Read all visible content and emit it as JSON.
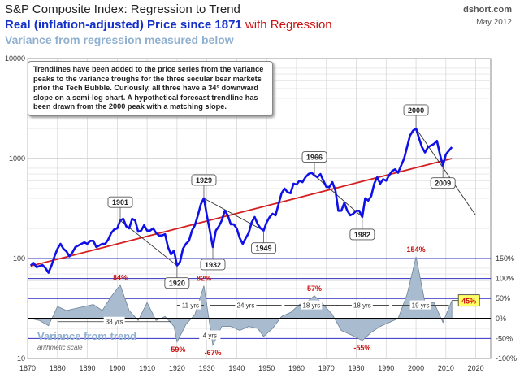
{
  "header": {
    "title": "S&P Composite Index: Regression to Trend",
    "subtitle_main": "Real (inflation-adjusted) Price since 1871",
    "subtitle_reg": "with Regression",
    "subtitle2": "Variance from regression measured below",
    "source": "dshort.com",
    "date": "May 2012"
  },
  "note": "Trendlines have been added to the price series from the variance peaks to the variance troughs for the three secular bear markets prior the Tech Bubble.  Curiously, all three have a 34° downward slope on a semi-log chart. A hypothetical forecast trendline has been drawn from the 2000 peak with a matching slope.",
  "colors": {
    "price": "#1010e8",
    "regression": "#d42020",
    "variance_fill": "#a9bccf",
    "variance_line": "#6f849a",
    "band": "#3030c0",
    "zero_line": "#000000",
    "bear_marker": "#cc1111",
    "highlight_fill": "#ffff66"
  },
  "chart_data": {
    "type": "line",
    "price_panel": {
      "y_scale": "log",
      "ylim": [
        10,
        10000
      ],
      "y_ticks": [
        "10000",
        "1000",
        "100",
        "10"
      ],
      "series": [
        {
          "name": "Real (inflation-adjusted) Price",
          "x": [
            1871,
            1872,
            1873,
            1874,
            1875,
            1876,
            1877,
            1878,
            1879,
            1880,
            1881,
            1882,
            1883,
            1884,
            1885,
            1886,
            1887,
            1888,
            1889,
            1890,
            1891,
            1892,
            1893,
            1894,
            1895,
            1896,
            1897,
            1898,
            1899,
            1900,
            1901,
            1902,
            1903,
            1904,
            1905,
            1906,
            1907,
            1908,
            1909,
            1910,
            1911,
            1912,
            1913,
            1914,
            1915,
            1916,
            1917,
            1918,
            1919,
            1920,
            1921,
            1922,
            1923,
            1924,
            1925,
            1926,
            1927,
            1928,
            1929,
            1930,
            1931,
            1932,
            1933,
            1934,
            1935,
            1936,
            1937,
            1938,
            1939,
            1940,
            1941,
            1942,
            1943,
            1944,
            1945,
            1946,
            1947,
            1948,
            1949,
            1950,
            1951,
            1952,
            1953,
            1954,
            1955,
            1956,
            1957,
            1958,
            1959,
            1960,
            1961,
            1962,
            1963,
            1964,
            1965,
            1966,
            1967,
            1968,
            1969,
            1970,
            1971,
            1972,
            1973,
            1974,
            1975,
            1976,
            1977,
            1978,
            1979,
            1980,
            1981,
            1982,
            1983,
            1984,
            1985,
            1986,
            1987,
            1988,
            1989,
            1990,
            1991,
            1992,
            1993,
            1994,
            1995,
            1996,
            1997,
            1998,
            1999,
            2000,
            2001,
            2002,
            2003,
            2004,
            2005,
            2006,
            2007,
            2008,
            2009,
            2010,
            2011,
            2012
          ],
          "y": [
            85,
            90,
            82,
            84,
            86,
            80,
            72,
            85,
            105,
            125,
            140,
            125,
            118,
            105,
            115,
            130,
            135,
            140,
            145,
            140,
            150,
            150,
            130,
            135,
            140,
            140,
            155,
            180,
            195,
            200,
            240,
            250,
            210,
            200,
            250,
            240,
            185,
            190,
            215,
            190,
            190,
            200,
            180,
            170,
            170,
            175,
            130,
            110,
            120,
            85,
            92,
            125,
            140,
            150,
            190,
            215,
            270,
            350,
            400,
            270,
            190,
            130,
            190,
            210,
            240,
            300,
            270,
            220,
            220,
            200,
            160,
            140,
            160,
            180,
            230,
            260,
            220,
            200,
            190,
            230,
            260,
            280,
            270,
            350,
            450,
            500,
            460,
            450,
            560,
            550,
            600,
            580,
            650,
            700,
            720,
            680,
            650,
            700,
            600,
            520,
            520,
            580,
            480,
            300,
            300,
            360,
            300,
            270,
            280,
            300,
            300,
            260,
            400,
            380,
            420,
            560,
            650,
            560,
            620,
            600,
            680,
            750,
            780,
            720,
            850,
            1000,
            1300,
            1700,
            1900,
            2000,
            1600,
            1300,
            1150,
            1300,
            1350,
            1400,
            1500,
            1100,
            850,
            1100,
            1200,
            1300
          ]
        },
        {
          "name": "Regression",
          "x": [
            1871,
            2012
          ],
          "y": [
            84,
            1000
          ]
        }
      ],
      "peak_labels": [
        "1901",
        "1929",
        "1966",
        "2000"
      ],
      "trough_labels": [
        "1920",
        "1932",
        "1949",
        "1982",
        "2009"
      ],
      "trendlines": [
        {
          "from": 1901,
          "to": 1920
        },
        {
          "from": 1929,
          "to": 1932
        },
        {
          "from": 1929,
          "to": 1949
        },
        {
          "from": 1966,
          "to": 1982
        },
        {
          "from": 2000,
          "to": 2020,
          "forecast": true
        }
      ]
    },
    "variance_panel": {
      "title": "Variance from trend",
      "scale_note": "arithmetic scale",
      "ylim": [
        -100,
        150
      ],
      "y_ticks": [
        "150%",
        "100%",
        "50%",
        "0%",
        "-50%",
        "-100%"
      ],
      "series": [
        {
          "name": "Variance from trend",
          "x": [
            1871,
            1874,
            1877,
            1880,
            1883,
            1886,
            1889,
            1892,
            1895,
            1898,
            1901,
            1904,
            1907,
            1910,
            1913,
            1916,
            1919,
            1920,
            1923,
            1926,
            1929,
            1932,
            1935,
            1938,
            1941,
            1944,
            1947,
            1949,
            1952,
            1955,
            1958,
            1961,
            1964,
            1966,
            1969,
            1972,
            1975,
            1978,
            1982,
            1985,
            1988,
            1991,
            1994,
            1997,
            2000,
            2003,
            2006,
            2009,
            2012
          ],
          "y": [
            0,
            -5,
            -18,
            30,
            20,
            25,
            30,
            35,
            20,
            55,
            84,
            20,
            -5,
            40,
            -5,
            5,
            -20,
            -59,
            -15,
            10,
            82,
            -67,
            -20,
            -20,
            -30,
            -20,
            -25,
            -45,
            -25,
            5,
            15,
            35,
            45,
            57,
            35,
            10,
            -30,
            -40,
            -55,
            -35,
            -20,
            -10,
            0,
            60,
            154,
            40,
            40,
            -10,
            45
          ]
        }
      ],
      "value_labels": [
        "84%",
        "82%",
        "57%",
        "154%",
        "-59%",
        "-67%",
        "-55%"
      ],
      "current_value": "45%",
      "spans": [
        "38 yrs",
        "11 yrs",
        "24 yrs",
        "4 yrs",
        "18 yrs",
        "18 yrs",
        "19 yrs"
      ]
    },
    "x_axis": {
      "xlim": [
        1870,
        2025
      ],
      "ticks": [
        "1870",
        "1880",
        "1890",
        "1900",
        "1910",
        "1920",
        "1930",
        "1940",
        "1950",
        "1960",
        "1970",
        "1980",
        "1990",
        "2000",
        "2010",
        "2020"
      ]
    }
  }
}
